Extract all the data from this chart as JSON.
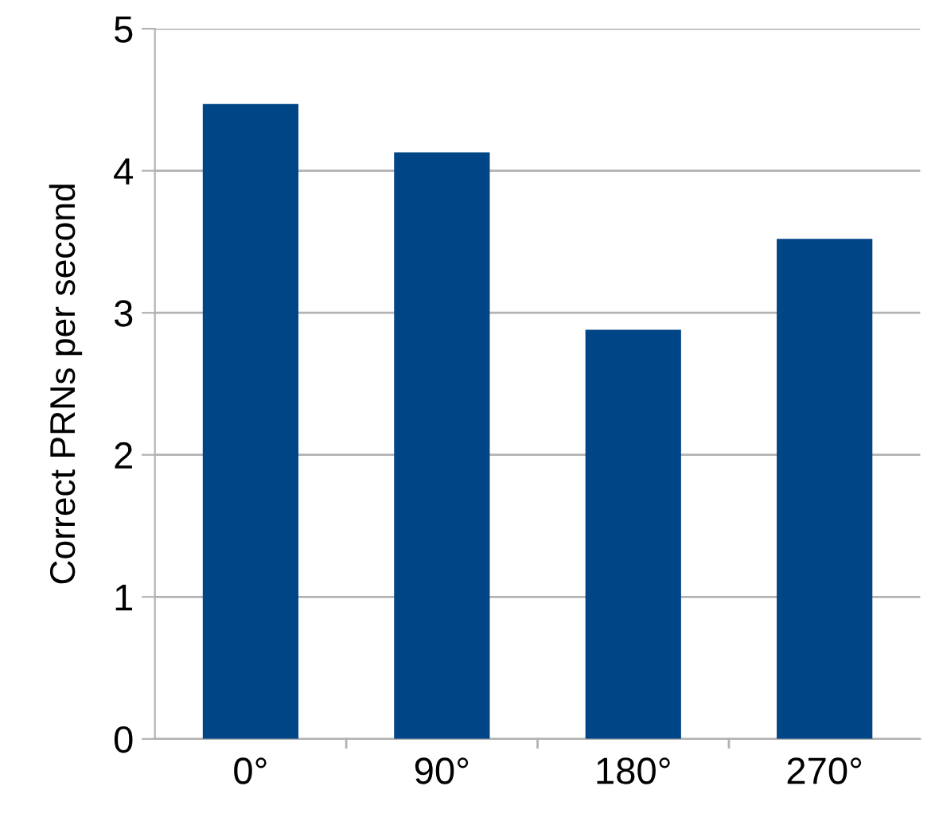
{
  "chart_data": {
    "type": "bar",
    "ylabel": "Correct PRNs per second",
    "categories": [
      "0°",
      "90°",
      "180°",
      "270°"
    ],
    "values": [
      4.47,
      4.13,
      2.88,
      3.52
    ],
    "color": "#004586",
    "ylim": [
      0,
      5
    ],
    "yticks": [
      0,
      1,
      2,
      3,
      4,
      5
    ],
    "grid": "y"
  }
}
